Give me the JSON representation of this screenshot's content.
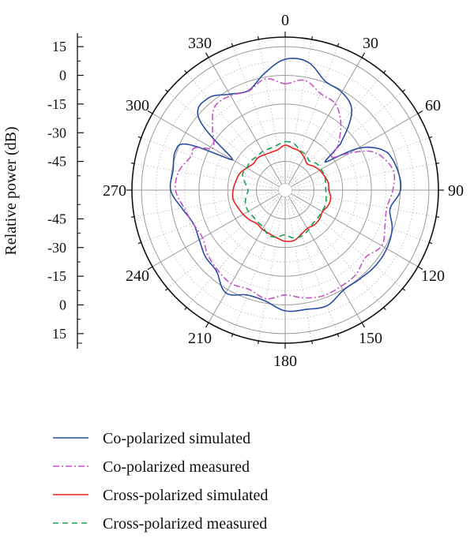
{
  "chart_data": {
    "type": "polar-line",
    "ylabel": "Relative power (dB)",
    "radial_ticks": [
      "15",
      "0",
      "-15",
      "-30",
      "-45"
    ],
    "radial_range": [
      -60,
      20
    ],
    "angle_ticks": [
      "0",
      "30",
      "60",
      "90",
      "120",
      "150",
      "180",
      "210",
      "240",
      "270",
      "300",
      "330"
    ],
    "axis_ticks": {
      "upper": [
        "15",
        "0",
        "-15",
        "-30",
        "-45"
      ],
      "lower": [
        "-45",
        "-30",
        "-15",
        "0",
        "15"
      ]
    },
    "legend_position": "bottom",
    "series": [
      {
        "name": "Co-polarized simulated",
        "color": "#2b4ea0",
        "dash": "solid",
        "angles": [
          0,
          10,
          20,
          30,
          40,
          50,
          55,
          60,
          65,
          70,
          80,
          90,
          100,
          110,
          120,
          130,
          140,
          150,
          160,
          170,
          180,
          190,
          200,
          210,
          220,
          230,
          240,
          250,
          260,
          270,
          280,
          290,
          295,
          300,
          310,
          320,
          330,
          340,
          350,
          360
        ],
        "values": [
          8.4,
          8.0,
          0.7,
          -0.9,
          -5.9,
          -22.4,
          -34.5,
          -16.6,
          -7.9,
          -3.0,
          -0.4,
          0.2,
          -4.4,
          -0.6,
          1.2,
          1.5,
          0.6,
          0.5,
          4.2,
          3.3,
          3.1,
          -1.1,
          -1.7,
          2.0,
          -4.4,
          -5.7,
          -8.2,
          -9.0,
          -5.3,
          -0.2,
          -0.6,
          0.8,
          -3.1,
          -28.3,
          -0.9,
          2.7,
          -2.1,
          -4.5,
          2.0,
          8.4
        ]
      },
      {
        "name": "Co-polarized measured",
        "color": "#c455c4",
        "dash": "8,3,2,3",
        "angles": [
          0,
          10,
          20,
          30,
          40,
          50,
          55,
          60,
          65,
          70,
          80,
          90,
          100,
          110,
          120,
          130,
          140,
          150,
          160,
          170,
          180,
          190,
          200,
          210,
          220,
          230,
          240,
          250,
          260,
          270,
          280,
          290,
          295,
          300,
          310,
          320,
          330,
          340,
          350,
          360
        ],
        "values": [
          -4.4,
          -1.7,
          -6.2,
          -7.8,
          -14.8,
          -24.1,
          -30.2,
          -21.2,
          -11.8,
          -7.0,
          -2.6,
          -3.8,
          -6.2,
          -4.6,
          -1.8,
          -5.3,
          -2.5,
          -1.9,
          -1.3,
          -2.8,
          -5.2,
          -2.4,
          -4.8,
          -3.6,
          -5.3,
          -7.3,
          -10.2,
          -8.8,
          -6.4,
          -2.8,
          -3.6,
          -7.8,
          -7.8,
          -16.3,
          -10.5,
          -2.9,
          -3.0,
          -4.8,
          -0.9,
          -4.4
        ]
      },
      {
        "name": "Cross-polarized simulated",
        "color": "#e82020",
        "dash": "solid",
        "angles": [
          0,
          10,
          20,
          30,
          40,
          50,
          60,
          70,
          80,
          90,
          100,
          110,
          120,
          130,
          140,
          150,
          160,
          170,
          180,
          190,
          200,
          210,
          220,
          230,
          240,
          250,
          260,
          270,
          280,
          290,
          300,
          310,
          320,
          330,
          340,
          350,
          360
        ],
        "values": [
          -36.5,
          -37.7,
          -38.3,
          -40.2,
          -42.1,
          -40.6,
          -39.2,
          -38.3,
          -37.2,
          -37.2,
          -35.9,
          -36.2,
          -37.5,
          -36.6,
          -36.3,
          -36.9,
          -35.5,
          -33.3,
          -33.3,
          -34.7,
          -35.8,
          -36.3,
          -37.1,
          -35.8,
          -34.7,
          -33.7,
          -32.4,
          -32.8,
          -33.8,
          -34.7,
          -36.8,
          -38.4,
          -37.9,
          -38.6,
          -38.9,
          -38.5,
          -36.5
        ]
      },
      {
        "name": "Cross-polarized measured",
        "color": "#15a050",
        "dash": "7,5",
        "angles": [
          0,
          10,
          20,
          30,
          40,
          50,
          60,
          70,
          80,
          90,
          100,
          110,
          120,
          130,
          140,
          150,
          160,
          170,
          180,
          190,
          200,
          210,
          220,
          230,
          240,
          250,
          260,
          270,
          280,
          290,
          300,
          310,
          320,
          330,
          340,
          350,
          360
        ],
        "values": [
          -34.7,
          -35.1,
          -37.7,
          -38.6,
          -40.2,
          -38.5,
          -38.3,
          -38.1,
          -38.6,
          -38.8,
          -38.3,
          -37.6,
          -37.9,
          -37.6,
          -37.4,
          -35.9,
          -34.5,
          -34.6,
          -36.6,
          -35.2,
          -34.8,
          -37.4,
          -38.0,
          -38.3,
          -37.8,
          -38.0,
          -39.2,
          -40.6,
          -38.8,
          -36.3,
          -36.8,
          -36.5,
          -37.0,
          -36.6,
          -36.8,
          -36.1,
          -34.7
        ]
      }
    ]
  }
}
